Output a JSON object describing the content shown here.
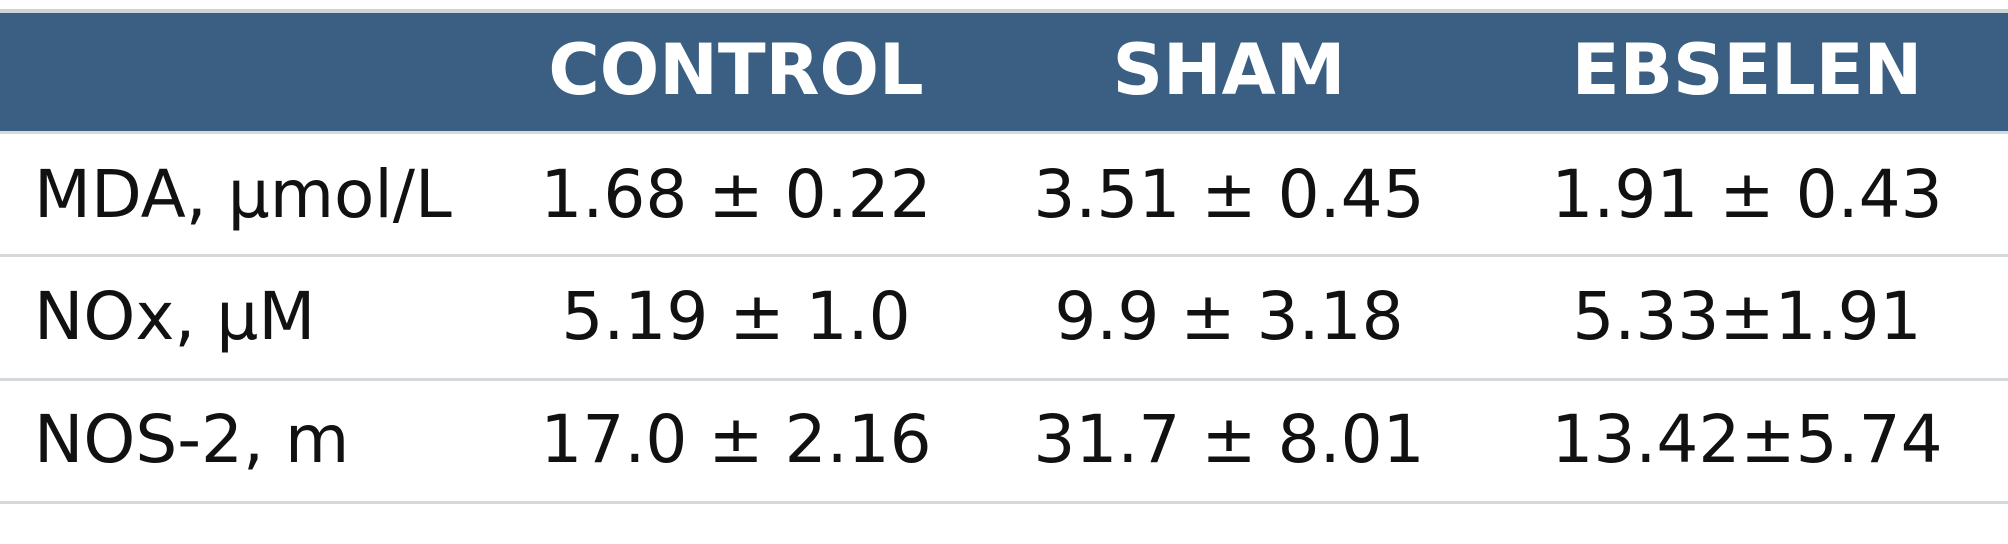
{
  "table": {
    "columns": [
      "CONTROL",
      "SHAM",
      "EBSELEN"
    ],
    "rows": [
      [
        "MDA, μmol/L",
        "1.68 ± 0.22",
        "3.51 ± 0.45",
        "1.91 ± 0.43"
      ],
      [
        "NOx, μM",
        "5.19 ± 1.0",
        "9.9 ± 3.18",
        "5.33±1.91"
      ],
      [
        "NOS-2, m",
        "17.0 ± 2.16",
        "31.7 ± 8.01",
        "13.42±5.74"
      ]
    ]
  }
}
